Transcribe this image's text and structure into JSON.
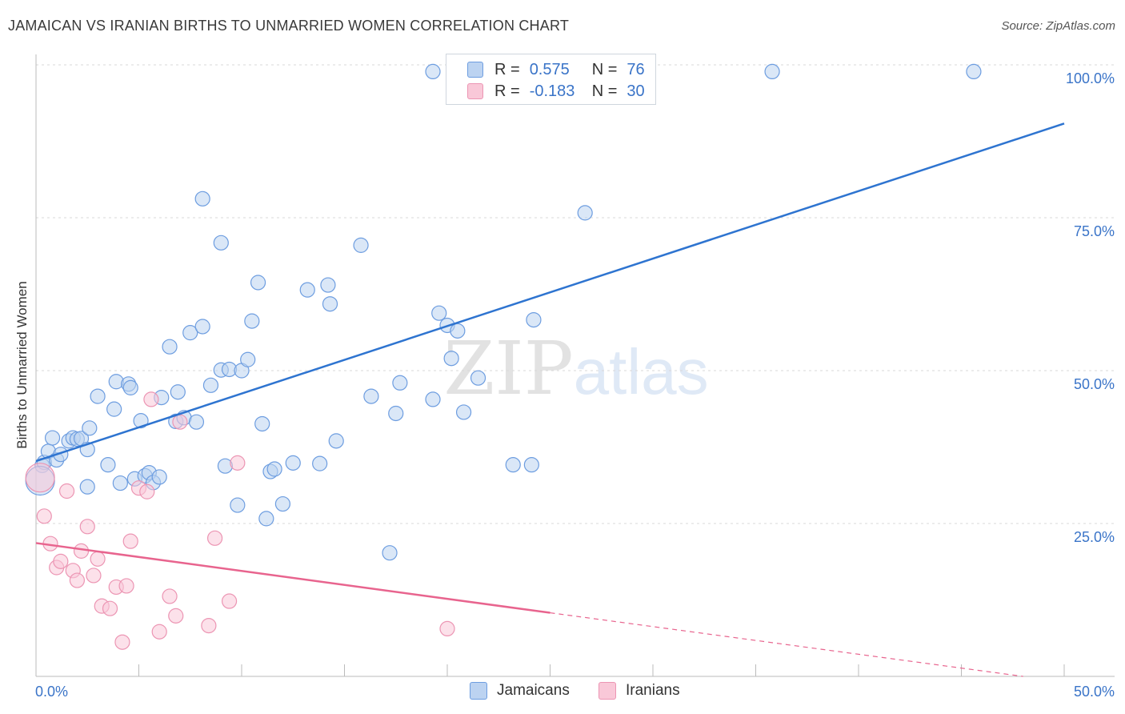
{
  "chart_data": {
    "type": "scatter",
    "title": "JAMAICAN VS IRANIAN BIRTHS TO UNMARRIED WOMEN CORRELATION CHART",
    "source": "Source: ZipAtlas.com",
    "xlabel": "",
    "ylabel": "Births to Unmarried Women",
    "xlim": [
      0,
      50
    ],
    "ylim": [
      0,
      100
    ],
    "x_tick_labels": [
      "0.0%",
      "50.0%"
    ],
    "y_tick_labels": [
      "100.0%",
      "75.0%",
      "50.0%",
      "25.0%"
    ],
    "y_ticks": [
      100,
      75,
      50,
      25
    ],
    "grid": true,
    "watermark": "ZIPatlas",
    "legend": {
      "rows": [
        {
          "r_label": "R =",
          "r_value": "0.575",
          "n_label": "N =",
          "n_value": "76"
        },
        {
          "r_label": "R =",
          "r_value": "-0.183",
          "n_label": "N =",
          "n_value": "30"
        }
      ]
    },
    "series": [
      {
        "name": "Jamaicans",
        "color": "#6d9de0",
        "fill": "#bcd3f1",
        "line_color": "#2e74d0",
        "trend": {
          "x0": 0,
          "y0": 35.2,
          "x1": 50,
          "y1": 90.4
        },
        "points": [
          [
            0.3,
            34.5
          ],
          [
            0.4,
            35.0
          ],
          [
            0.6,
            36.8
          ],
          [
            0.8,
            39.0
          ],
          [
            1.0,
            35.4
          ],
          [
            1.2,
            36.3
          ],
          [
            1.6,
            38.5
          ],
          [
            1.8,
            39.0
          ],
          [
            2.0,
            38.8
          ],
          [
            2.2,
            38.9
          ],
          [
            2.5,
            37.1
          ],
          [
            2.6,
            40.6
          ],
          [
            2.5,
            31.0
          ],
          [
            3.0,
            45.8
          ],
          [
            3.5,
            34.6
          ],
          [
            3.8,
            43.7
          ],
          [
            3.9,
            48.2
          ],
          [
            4.1,
            31.6
          ],
          [
            4.5,
            47.8
          ],
          [
            4.6,
            47.2
          ],
          [
            4.8,
            32.3
          ],
          [
            5.1,
            41.8
          ],
          [
            5.3,
            32.8
          ],
          [
            5.5,
            33.3
          ],
          [
            5.7,
            31.7
          ],
          [
            6.0,
            32.6
          ],
          [
            6.1,
            45.6
          ],
          [
            6.5,
            53.9
          ],
          [
            6.8,
            41.7
          ],
          [
            6.9,
            46.5
          ],
          [
            7.2,
            42.3
          ],
          [
            7.5,
            56.2
          ],
          [
            7.8,
            41.6
          ],
          [
            8.1,
            57.2
          ],
          [
            8.5,
            47.6
          ],
          [
            9.0,
            50.1
          ],
          [
            9.2,
            34.4
          ],
          [
            9.4,
            50.2
          ],
          [
            9.8,
            28.0
          ],
          [
            10.0,
            50.0
          ],
          [
            10.3,
            51.8
          ],
          [
            10.5,
            58.1
          ],
          [
            10.8,
            64.4
          ],
          [
            11.0,
            41.3
          ],
          [
            11.2,
            25.8
          ],
          [
            11.4,
            33.5
          ],
          [
            11.6,
            33.9
          ],
          [
            12.0,
            28.2
          ],
          [
            12.5,
            34.9
          ],
          [
            13.2,
            63.2
          ],
          [
            13.8,
            34.8
          ],
          [
            14.2,
            64.0
          ],
          [
            14.3,
            60.9
          ],
          [
            14.6,
            38.5
          ],
          [
            15.8,
            70.5
          ],
          [
            16.3,
            45.8
          ],
          [
            17.2,
            20.2
          ],
          [
            17.5,
            43.0
          ],
          [
            17.7,
            48.0
          ],
          [
            19.3,
            45.3
          ],
          [
            19.6,
            59.4
          ],
          [
            20.0,
            57.4
          ],
          [
            20.2,
            52.0
          ],
          [
            20.5,
            56.5
          ],
          [
            20.8,
            43.2
          ],
          [
            21.5,
            48.8
          ],
          [
            23.2,
            34.6
          ],
          [
            24.1,
            34.6
          ],
          [
            24.2,
            58.3
          ],
          [
            26.7,
            75.8
          ],
          [
            8.1,
            78.1
          ],
          [
            9.0,
            70.9
          ],
          [
            19.3,
            98.9
          ],
          [
            35.8,
            98.9
          ],
          [
            45.6,
            98.9
          ],
          [
            0.2,
            32.0
          ]
        ]
      },
      {
        "name": "Iranians",
        "color": "#ec95b3",
        "fill": "#f9c8d8",
        "line_color": "#e8648e",
        "trend": {
          "x0": 0,
          "y0": 21.8,
          "x1": 25,
          "y1": 10.4
        },
        "trend_ext": {
          "x0": 25,
          "y0": 10.4,
          "x1": 48,
          "y1": 0.0
        },
        "points": [
          [
            0.4,
            26.2
          ],
          [
            0.7,
            21.7
          ],
          [
            1.0,
            17.8
          ],
          [
            1.2,
            18.8
          ],
          [
            1.5,
            30.3
          ],
          [
            1.8,
            17.3
          ],
          [
            2.0,
            15.7
          ],
          [
            2.2,
            20.5
          ],
          [
            2.5,
            24.5
          ],
          [
            2.8,
            16.5
          ],
          [
            3.0,
            19.2
          ],
          [
            3.2,
            11.5
          ],
          [
            3.6,
            11.1
          ],
          [
            3.9,
            14.6
          ],
          [
            4.2,
            5.6
          ],
          [
            4.4,
            14.8
          ],
          [
            4.6,
            22.1
          ],
          [
            5.0,
            30.8
          ],
          [
            5.4,
            30.2
          ],
          [
            5.6,
            45.3
          ],
          [
            6.0,
            7.3
          ],
          [
            6.5,
            13.1
          ],
          [
            6.8,
            9.9
          ],
          [
            7.0,
            41.6
          ],
          [
            8.4,
            8.3
          ],
          [
            8.7,
            22.6
          ],
          [
            9.4,
            12.3
          ],
          [
            9.8,
            34.9
          ],
          [
            20.0,
            7.8
          ],
          [
            0.2,
            32.5
          ]
        ]
      }
    ]
  }
}
